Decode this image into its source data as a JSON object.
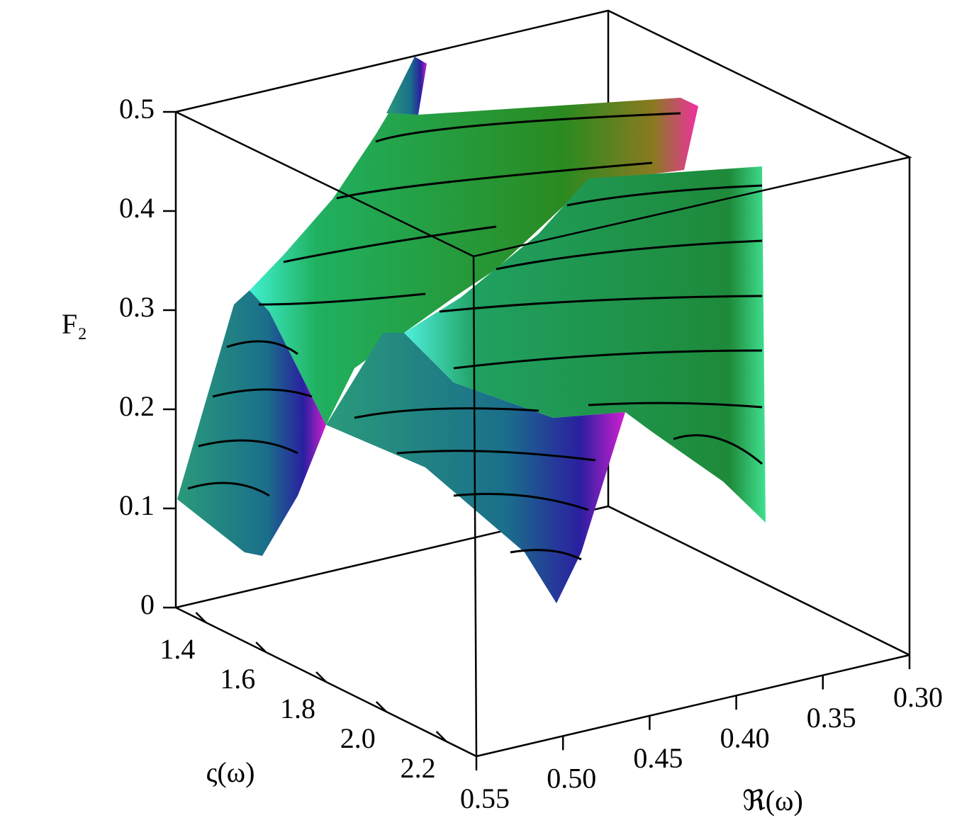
{
  "chart_data": {
    "type": "surface3d",
    "zlabel": "F₂",
    "ylabel": "ς(ω)",
    "xlabel": "ℜ(ω)",
    "zlim": [
      0,
      0.5
    ],
    "zticks": [
      0,
      0.1,
      0.2,
      0.3,
      0.4,
      0.5
    ],
    "ylim": [
      1.3,
      2.3
    ],
    "yticks": [
      1.4,
      1.6,
      1.8,
      {
        "value": 2.0,
        "label": "2.0"
      },
      2.2
    ],
    "xlim": [
      0.55,
      0.3
    ],
    "xticks": [
      0.55,
      {
        "value": 0.5,
        "label": "0.50"
      },
      0.45,
      {
        "value": 0.4,
        "label": "0.40"
      },
      0.35,
      {
        "value": 0.3,
        "label": "0.30"
      }
    ]
  }
}
